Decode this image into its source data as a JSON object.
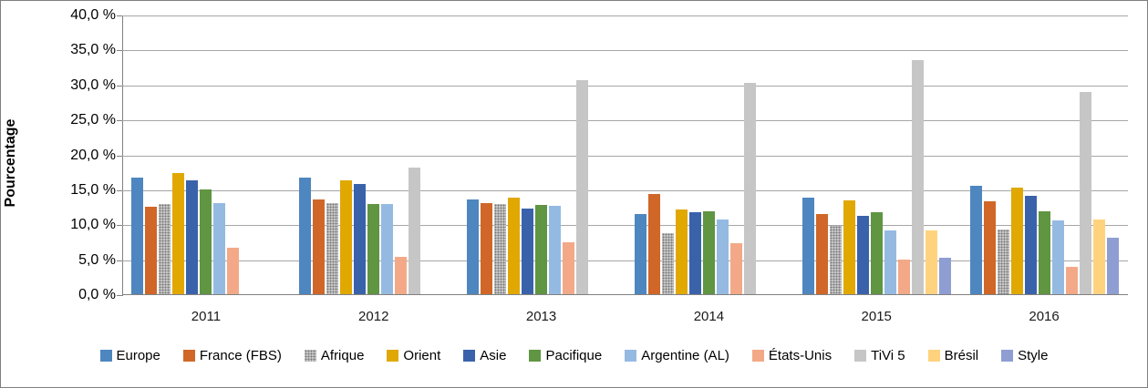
{
  "chart_data": {
    "type": "bar",
    "title": "",
    "xlabel": "",
    "ylabel": "Pourcentage",
    "ylim": [
      0,
      40
    ],
    "ytick_step": 5,
    "ytick_labels_top_to_bottom": [
      "40,0 %",
      "35,0 %",
      "30,0 %",
      "25,0 %",
      "20,0 %",
      "15,0 %",
      "10,0 %",
      "5,0 %",
      "0,0 %"
    ],
    "grid": true,
    "legend_position": "bottom",
    "categories": [
      "2011",
      "2012",
      "2013",
      "2014",
      "2015",
      "2016"
    ],
    "series": [
      {
        "name": "Europe",
        "color": "#4e86c0",
        "pattern": "solid",
        "values": [
          16.8,
          16.8,
          13.7,
          11.6,
          13.9,
          15.7
        ]
      },
      {
        "name": "France (FBS)",
        "color": "#d06728",
        "pattern": "solid",
        "values": [
          12.6,
          13.7,
          13.2,
          14.4,
          11.6,
          13.4
        ]
      },
      {
        "name": "Afrique",
        "color": "#a0a0a0",
        "pattern": "dots",
        "values": [
          13.0,
          13.1,
          13.0,
          8.9,
          9.9,
          9.4
        ]
      },
      {
        "name": "Orient",
        "color": "#e1a802",
        "pattern": "solid",
        "values": [
          17.5,
          16.4,
          13.9,
          12.2,
          13.6,
          15.4
        ]
      },
      {
        "name": "Asie",
        "color": "#3a62ab",
        "pattern": "solid",
        "values": [
          16.4,
          15.9,
          12.4,
          11.9,
          11.3,
          14.2
        ]
      },
      {
        "name": "Pacifique",
        "color": "#609542",
        "pattern": "solid",
        "values": [
          15.1,
          13.0,
          12.9,
          12.0,
          11.9,
          12.0
        ]
      },
      {
        "name": "Argentine (AL)",
        "color": "#95bae2",
        "pattern": "solid",
        "values": [
          13.2,
          13.0,
          12.8,
          10.8,
          9.2,
          10.7
        ]
      },
      {
        "name": "États-Unis",
        "color": "#f3a987",
        "pattern": "solid",
        "values": [
          6.8,
          5.5,
          7.5,
          7.4,
          5.1,
          4.0
        ]
      },
      {
        "name": "TiVi 5",
        "color": "#c6c6c6",
        "pattern": "solid",
        "values": [
          null,
          18.2,
          30.8,
          30.4,
          33.6,
          29.0
        ]
      },
      {
        "name": "Brésil",
        "color": "#ffd37e",
        "pattern": "solid",
        "values": [
          null,
          null,
          null,
          null,
          9.2,
          10.8
        ]
      },
      {
        "name": "Style",
        "color": "#8e9ed2",
        "pattern": "solid",
        "values": [
          null,
          null,
          null,
          null,
          5.4,
          8.2
        ]
      }
    ]
  }
}
